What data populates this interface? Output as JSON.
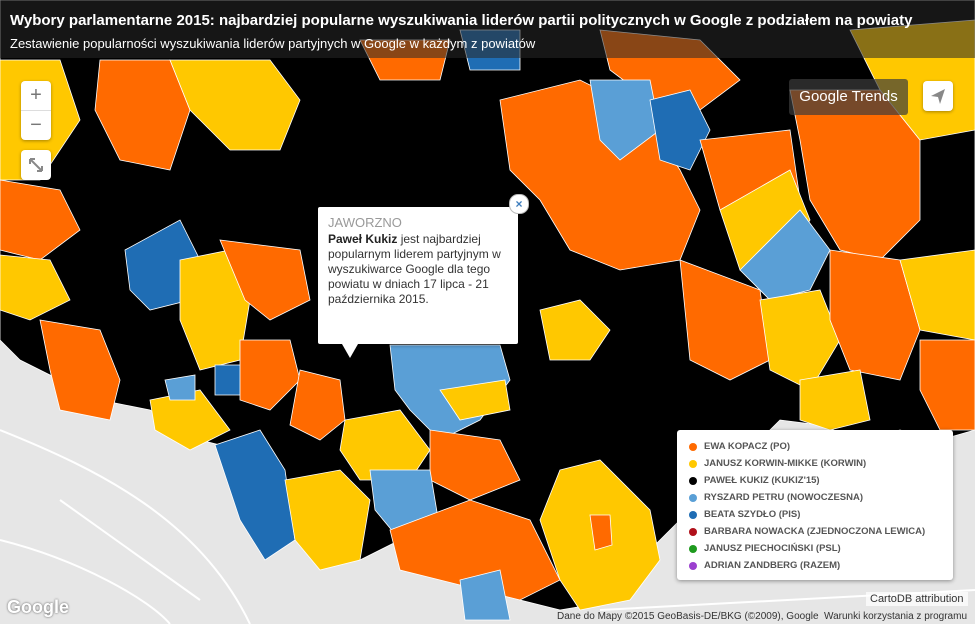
{
  "header": {
    "title": "Wybory parlamentarne 2015: najbardziej popularne wyszukiwania liderów partii politycznych w Google z podziałem na powiaty",
    "subtitle": "Zestawienie popularności wyszukiwania liderów partyjnych w Google w każdym z powiatów"
  },
  "controls": {
    "zoom_in": "+",
    "zoom_out": "−",
    "google_trends": "Google Trends",
    "close": "×"
  },
  "popup": {
    "title": "JAWORZNO",
    "leader": "Paweł Kukiz",
    "text": "jest najbardziej popularnym liderem partyjnym w wyszukiwarce Google dla tego powiatu w dniach 17 lipca - 21 października 2015."
  },
  "legend": {
    "items": [
      {
        "name": "EWA KOPACZ (PO)",
        "color": "#ff6a00"
      },
      {
        "name": "JANUSZ KORWIN-MIKKE (KORWIN)",
        "color": "#ffc800"
      },
      {
        "name": "PAWEŁ KUKIZ (KUKIZ'15)",
        "color": "#000000"
      },
      {
        "name": "RYSZARD PETRU (NOWOCZESNA)",
        "color": "#5a9fd6"
      },
      {
        "name": "BEATA SZYDŁO (PIS)",
        "color": "#1f6db4"
      },
      {
        "name": "BARBARA NOWACKA (ZJEDNOCZONA LEWICA)",
        "color": "#b0101a"
      },
      {
        "name": "JANUSZ PIECHOCIŃSKI (PSL)",
        "color": "#1e9a1e"
      },
      {
        "name": "ADRIAN ZANDBERG (RAZEM)",
        "color": "#9b3fcf"
      }
    ]
  },
  "footer": {
    "carto": "CartoDB attribution",
    "google": "Google",
    "map_data": "Dane do Mapy ©2015 GeoBasis-DE/BKG (©2009), Google",
    "terms": "Warunki korzystania z programu"
  }
}
